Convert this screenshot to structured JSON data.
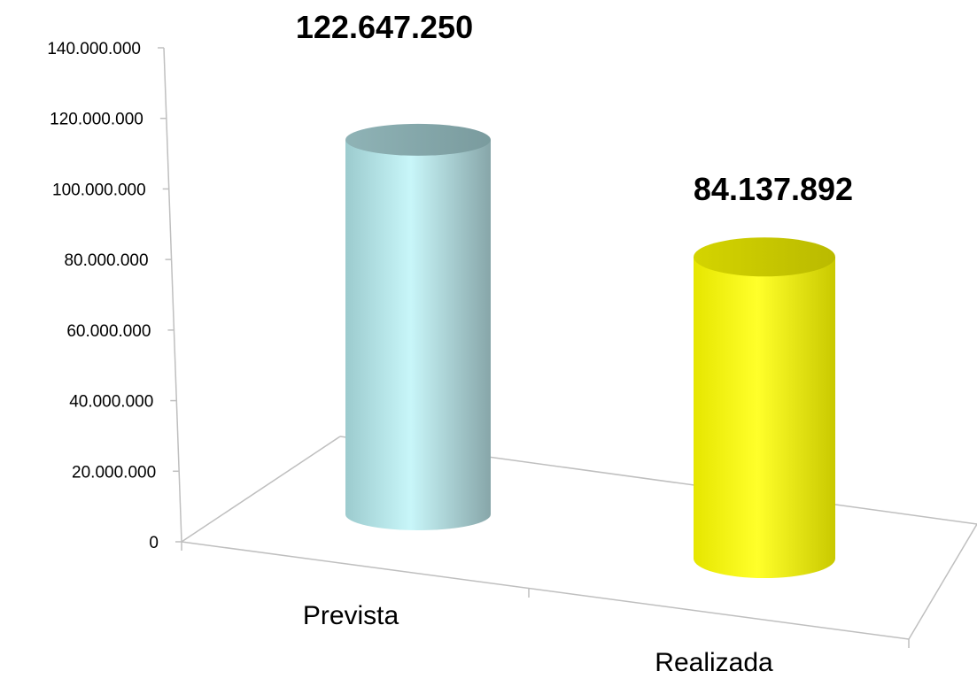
{
  "chart_data": {
    "type": "bar",
    "style": "3d-cylinder",
    "categories": [
      "Prevista",
      "Realizada"
    ],
    "values": [
      122647250,
      84137892
    ],
    "data_labels": [
      "122.647.250",
      "84.137.892"
    ],
    "colors": [
      "#bfeef1",
      "#ffff00"
    ],
    "ylim": [
      0,
      140000000
    ],
    "yticks": [
      0,
      20000000,
      40000000,
      60000000,
      80000000,
      100000000,
      120000000,
      140000000
    ],
    "ytick_labels": [
      "0",
      "20.000.000",
      "40.000.000",
      "60.000.000",
      "80.000.000",
      "100.000.000",
      "120.000.000",
      "140.000.000"
    ],
    "title": "",
    "xlabel": "",
    "ylabel": "",
    "legend": "none",
    "grid": false
  }
}
